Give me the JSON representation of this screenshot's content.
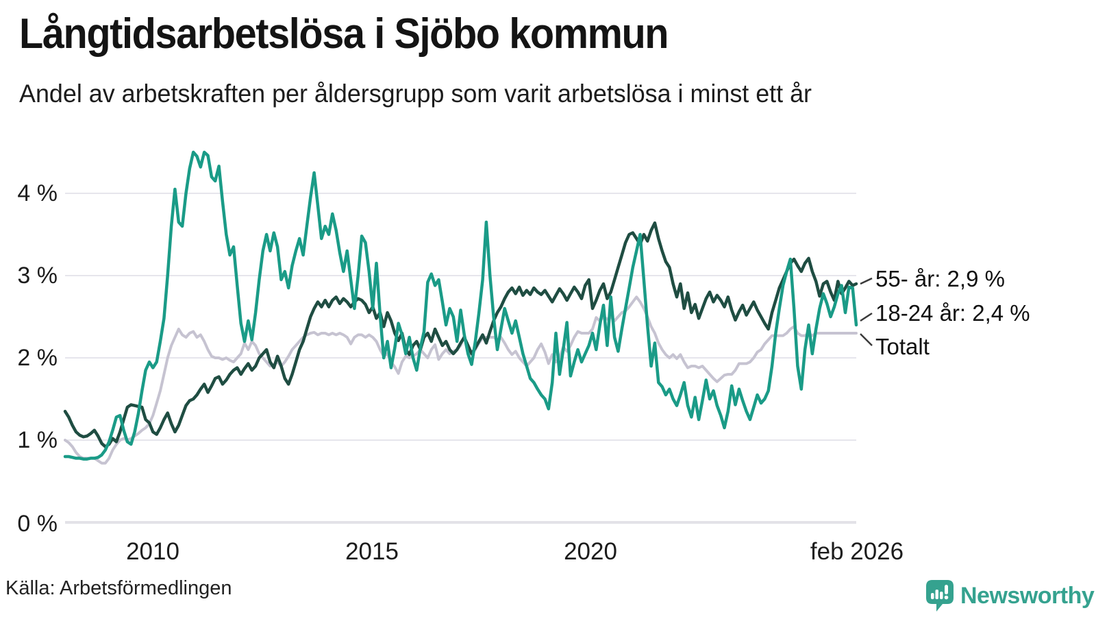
{
  "header": {
    "title": "Långtidsarbetslösa i Sjöbo kommun",
    "subtitle": "Andel av arbetskraften per åldersgrupp som varit arbetslösa i minst ett år"
  },
  "footer": {
    "source": "Källa: Arbetsförmedlingen",
    "brand": "Newsworthy"
  },
  "colors": {
    "teal_line": "#1a9b87",
    "dark_green_line": "#1f4d42",
    "gray_line": "#c6c3d1",
    "grid": "#e6e5ec",
    "zero_line": "#e3e2e8",
    "text": "#1a1a1a",
    "brand_teal": "#35a28f"
  },
  "chart_data": {
    "type": "line",
    "unit": "%",
    "title": "Långtidsarbetslösa i Sjöbo kommun",
    "subtitle": "Andel av arbetskraften per åldersgrupp som varit arbetslösa i minst ett år",
    "x_start": "feb 2008",
    "x_end": "feb 2026",
    "frequency": "monthly",
    "x_tick_labels": [
      "2010",
      "2015",
      "2020",
      "feb 2026"
    ],
    "y_ticks": [
      "0 %",
      "1 %",
      "2 %",
      "3 %",
      "4 %"
    ],
    "ylim": [
      0,
      4.6
    ],
    "grid": true,
    "legend_position": "right-end-labels",
    "series": [
      {
        "id": "totalt",
        "name": "Totalt",
        "end_label": "Totalt",
        "end_value": 2.3,
        "color": "#c6c3d1",
        "values": [
          1.0,
          0.97,
          0.92,
          0.85,
          0.8,
          0.78,
          0.78,
          0.78,
          0.78,
          0.75,
          0.72,
          0.72,
          0.78,
          0.88,
          0.95,
          1.0,
          1.02,
          1.0,
          1.02,
          1.05,
          1.08,
          1.12,
          1.15,
          1.2,
          1.3,
          1.45,
          1.6,
          1.8,
          2.0,
          2.15,
          2.25,
          2.35,
          2.28,
          2.25,
          2.3,
          2.32,
          2.25,
          2.28,
          2.2,
          2.1,
          2.02,
          2.0,
          2.0,
          1.98,
          2.0,
          1.97,
          1.95,
          2.0,
          2.05,
          2.18,
          2.1,
          2.2,
          2.15,
          2.05,
          2.0,
          1.95,
          1.9,
          1.92,
          1.95,
          1.9,
          1.95,
          2.02,
          2.1,
          2.15,
          2.2,
          2.25,
          2.28,
          2.3,
          2.31,
          2.28,
          2.3,
          2.3,
          2.28,
          2.3,
          2.28,
          2.3,
          2.28,
          2.25,
          2.17,
          2.25,
          2.28,
          2.28,
          2.25,
          2.28,
          2.25,
          2.2,
          2.1,
          2.02,
          2.05,
          1.95,
          1.89,
          1.81,
          1.95,
          2.02,
          2.0,
          2.02,
          2.05,
          2.1,
          2.05,
          2.0,
          2.1,
          2.16,
          1.98,
          2.05,
          2.1,
          2.05,
          2.08,
          2.1,
          2.15,
          2.27,
          2.1,
          2.04,
          2.1,
          2.18,
          2.24,
          2.25,
          2.25,
          2.25,
          2.22,
          2.25,
          2.18,
          2.1,
          2.04,
          2.08,
          2.0,
          1.95,
          1.9,
          1.95,
          2.0,
          2.1,
          2.17,
          2.07,
          1.93,
          2.04,
          1.95,
          2.0,
          2.13,
          2.08,
          2.15,
          2.25,
          2.32,
          2.3,
          2.3,
          2.3,
          2.35,
          2.49,
          2.45,
          2.5,
          2.47,
          2.5,
          2.45,
          2.5,
          2.55,
          2.57,
          2.62,
          2.68,
          2.74,
          2.68,
          2.6,
          2.5,
          2.38,
          2.3,
          2.18,
          2.1,
          2.04,
          2.0,
          2.04,
          1.99,
          2.04,
          1.95,
          1.88,
          1.9,
          1.9,
          1.88,
          1.9,
          1.85,
          1.8,
          1.75,
          1.71,
          1.75,
          1.79,
          1.8,
          1.8,
          1.85,
          1.93,
          1.93,
          1.93,
          1.95,
          2.0,
          2.07,
          2.1,
          2.17,
          2.22,
          2.27,
          2.27,
          2.27,
          2.27,
          2.3,
          2.35,
          2.38,
          2.3,
          2.27,
          2.27,
          2.3,
          2.27,
          2.3,
          2.3,
          2.3,
          2.3,
          2.3,
          2.3,
          2.3,
          2.3,
          2.3,
          2.3,
          2.3,
          2.3
        ]
      },
      {
        "id": "55-ar",
        "name": "55- år",
        "end_label": "55- år: 2,9 %",
        "end_value": 2.9,
        "color": "#1f4d42",
        "values": [
          1.35,
          1.28,
          1.18,
          1.1,
          1.06,
          1.04,
          1.05,
          1.08,
          1.12,
          1.05,
          0.96,
          0.92,
          0.95,
          1.02,
          0.98,
          1.1,
          1.25,
          1.4,
          1.43,
          1.42,
          1.41,
          1.4,
          1.25,
          1.21,
          1.1,
          1.07,
          1.15,
          1.25,
          1.33,
          1.2,
          1.1,
          1.18,
          1.3,
          1.42,
          1.48,
          1.5,
          1.55,
          1.62,
          1.68,
          1.58,
          1.66,
          1.75,
          1.77,
          1.68,
          1.73,
          1.8,
          1.85,
          1.88,
          1.8,
          1.87,
          1.93,
          1.85,
          1.9,
          2.0,
          2.05,
          2.1,
          1.95,
          1.88,
          2.02,
          1.9,
          1.75,
          1.68,
          1.8,
          1.95,
          2.1,
          2.2,
          2.35,
          2.5,
          2.6,
          2.68,
          2.62,
          2.7,
          2.62,
          2.7,
          2.74,
          2.66,
          2.72,
          2.68,
          2.62,
          2.68,
          2.72,
          2.7,
          2.65,
          2.55,
          2.62,
          2.48,
          2.55,
          2.38,
          2.55,
          2.45,
          2.3,
          2.21,
          2.3,
          2.1,
          2.04,
          2.15,
          2.2,
          2.1,
          2.25,
          2.3,
          2.2,
          2.35,
          2.25,
          2.15,
          2.2,
          2.1,
          2.05,
          2.1,
          2.18,
          2.25,
          2.15,
          2.05,
          2.12,
          2.2,
          2.28,
          2.18,
          2.32,
          2.45,
          2.55,
          2.62,
          2.72,
          2.8,
          2.85,
          2.78,
          2.86,
          2.76,
          2.82,
          2.77,
          2.85,
          2.8,
          2.77,
          2.82,
          2.75,
          2.68,
          2.76,
          2.84,
          2.78,
          2.7,
          2.78,
          2.86,
          2.8,
          2.72,
          2.88,
          2.95,
          2.6,
          2.7,
          2.82,
          2.9,
          2.72,
          2.8,
          2.95,
          3.1,
          3.25,
          3.4,
          3.5,
          3.52,
          3.45,
          3.38,
          3.5,
          3.42,
          3.55,
          3.64,
          3.45,
          3.3,
          3.17,
          3.1,
          2.9,
          2.74,
          2.9,
          2.6,
          2.79,
          2.55,
          2.65,
          2.48,
          2.6,
          2.72,
          2.8,
          2.68,
          2.76,
          2.7,
          2.62,
          2.74,
          2.58,
          2.46,
          2.56,
          2.64,
          2.52,
          2.6,
          2.68,
          2.58,
          2.5,
          2.42,
          2.35,
          2.55,
          2.7,
          2.85,
          2.95,
          3.05,
          3.15,
          3.2,
          3.12,
          3.05,
          3.15,
          3.21,
          3.05,
          2.93,
          2.75,
          2.9,
          2.93,
          2.8,
          2.7,
          2.93,
          2.78,
          2.85,
          2.93,
          2.88,
          2.9
        ]
      },
      {
        "id": "18-24-ar",
        "name": "18-24 år",
        "end_label": "18-24 år: 2,4 %",
        "end_value": 2.4,
        "color": "#1a9b87",
        "values": [
          0.8,
          0.8,
          0.79,
          0.78,
          0.78,
          0.77,
          0.77,
          0.78,
          0.78,
          0.79,
          0.82,
          0.88,
          0.98,
          1.12,
          1.28,
          1.3,
          1.12,
          0.98,
          0.95,
          1.1,
          1.32,
          1.6,
          1.85,
          1.95,
          1.88,
          1.95,
          2.2,
          2.48,
          3.0,
          3.6,
          4.05,
          3.65,
          3.6,
          4.0,
          4.3,
          4.5,
          4.45,
          4.32,
          4.5,
          4.46,
          4.2,
          4.15,
          4.33,
          3.9,
          3.5,
          3.25,
          3.35,
          2.88,
          2.42,
          2.2,
          2.45,
          2.22,
          2.55,
          2.95,
          3.3,
          3.5,
          3.3,
          3.52,
          3.35,
          2.95,
          3.05,
          2.85,
          3.12,
          3.3,
          3.45,
          3.25,
          3.6,
          3.95,
          4.25,
          3.85,
          3.45,
          3.6,
          3.5,
          3.75,
          3.55,
          3.28,
          3.05,
          3.3,
          2.95,
          2.6,
          3.0,
          3.48,
          3.4,
          3.05,
          2.6,
          3.15,
          2.52,
          2.0,
          2.2,
          1.88,
          2.12,
          2.42,
          2.28,
          2.05,
          2.25,
          2.0,
          1.85,
          2.12,
          2.32,
          2.92,
          3.02,
          2.88,
          2.95,
          2.68,
          2.4,
          2.6,
          2.5,
          2.2,
          2.58,
          2.28,
          2.05,
          1.92,
          2.2,
          2.55,
          2.95,
          3.65,
          3.0,
          2.5,
          2.1,
          2.35,
          2.6,
          2.45,
          2.3,
          2.45,
          2.25,
          2.05,
          1.9,
          1.75,
          1.7,
          1.62,
          1.55,
          1.5,
          1.38,
          1.7,
          2.3,
          1.8,
          2.1,
          2.43,
          1.78,
          1.95,
          2.1,
          1.95,
          2.05,
          2.15,
          2.3,
          2.1,
          2.4,
          2.64,
          2.15,
          2.74,
          2.25,
          2.08,
          2.35,
          2.6,
          2.85,
          3.1,
          3.3,
          3.5,
          2.95,
          2.4,
          1.9,
          2.18,
          1.7,
          1.65,
          1.55,
          1.62,
          1.5,
          1.42,
          1.55,
          1.7,
          1.42,
          1.28,
          1.52,
          1.25,
          1.48,
          1.73,
          1.5,
          1.6,
          1.42,
          1.3,
          1.15,
          1.35,
          1.66,
          1.43,
          1.62,
          1.48,
          1.35,
          1.25,
          1.4,
          1.55,
          1.45,
          1.5,
          1.6,
          1.9,
          2.3,
          2.6,
          2.88,
          3.05,
          3.2,
          2.6,
          1.9,
          1.62,
          2.1,
          2.4,
          2.05,
          2.35,
          2.6,
          2.78,
          2.66,
          2.5,
          2.62,
          2.78,
          2.88,
          2.55,
          2.86,
          2.85,
          2.4
        ]
      }
    ]
  }
}
